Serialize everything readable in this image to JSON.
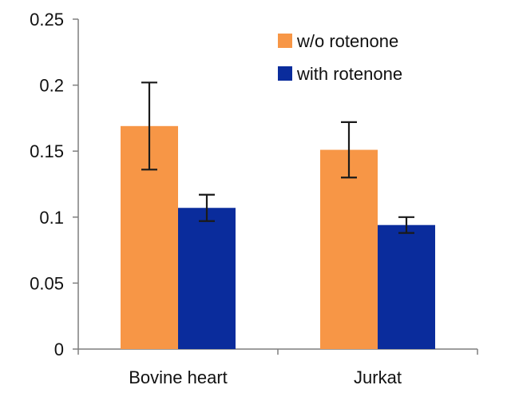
{
  "chart_data": {
    "type": "bar",
    "categories": [
      "Bovine heart",
      "Jurkat"
    ],
    "series": [
      {
        "name": "w/o rotenone",
        "color": "#F79646",
        "values": [
          0.169,
          0.151
        ],
        "errors": [
          0.033,
          0.021
        ]
      },
      {
        "name": "with rotenone",
        "color": "#0A2C9C",
        "values": [
          0.107,
          0.094
        ],
        "errors": [
          0.01,
          0.006
        ]
      }
    ],
    "ylim": [
      0,
      0.25
    ],
    "yticks": [
      "0",
      "0.05",
      "0.1",
      "0.15",
      "0.2",
      "0.25"
    ],
    "title": "",
    "xlabel": "",
    "ylabel": "",
    "grid": false,
    "legend_position": "top-right"
  }
}
